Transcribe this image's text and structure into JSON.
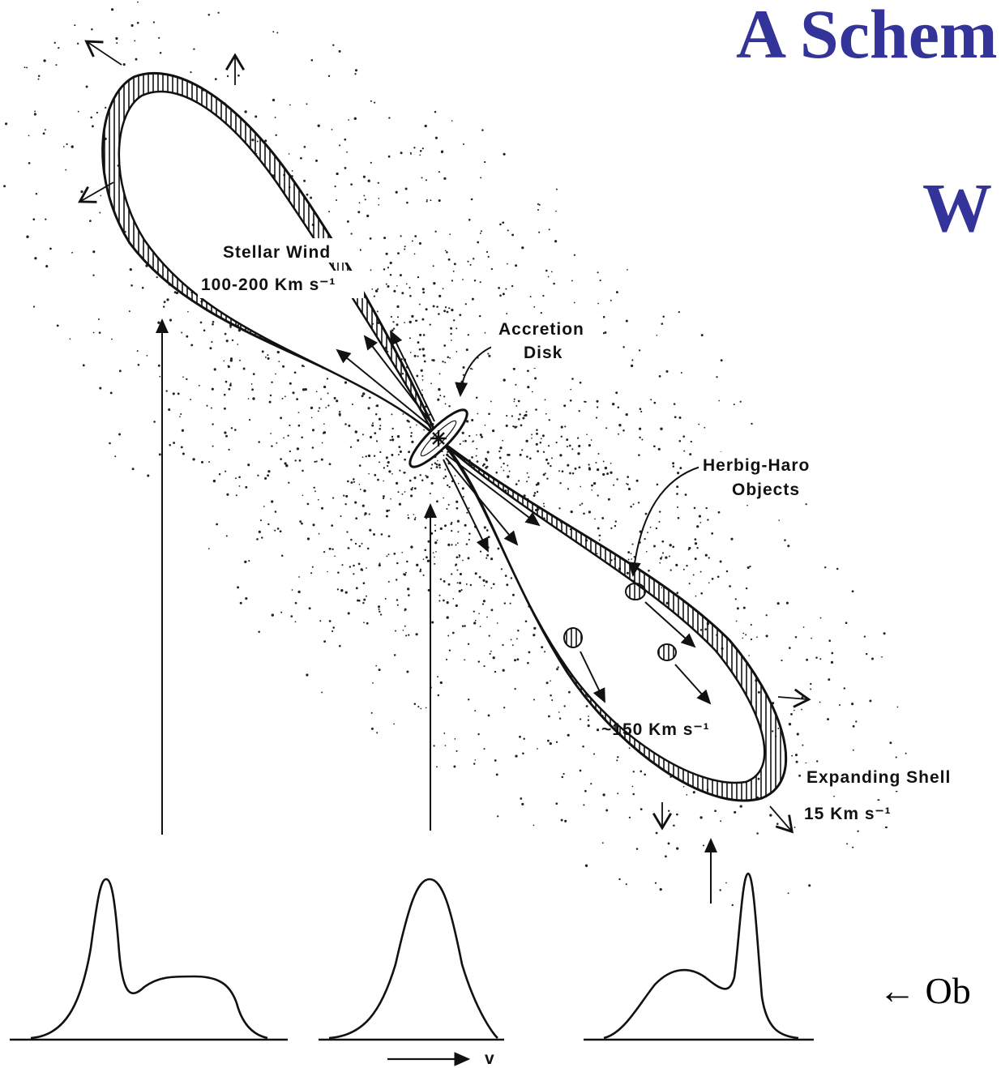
{
  "slide": {
    "title_line1": "A Schem",
    "title_line2": "W",
    "observed_note": "← Ob"
  },
  "colors": {
    "title": "#333399",
    "ink": "#111111",
    "background": "#ffffff"
  },
  "diagram": {
    "labels": {
      "stellar_wind": "Stellar Wind",
      "stellar_wind_speed": "100-200 Km s⁻¹",
      "accretion_disk_1": "Accretion",
      "accretion_disk_2": "Disk",
      "herbig_haro_1": "Herbig-Haro",
      "herbig_haro_2": "Objects",
      "jet_speed": "~150 Km s⁻¹",
      "expanding_shell": "Expanding Shell",
      "shell_speed": "15 Km s⁻¹",
      "velocity_axis": "v"
    }
  }
}
